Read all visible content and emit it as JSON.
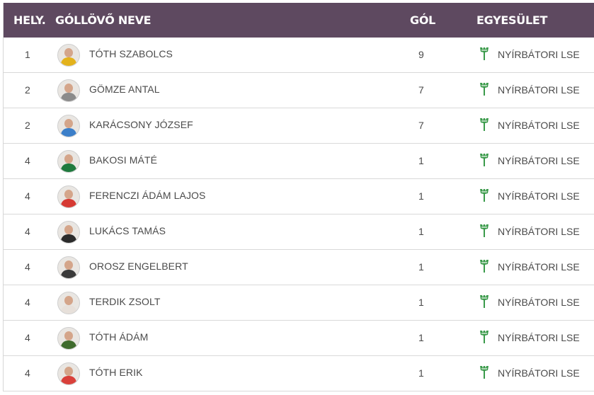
{
  "header": {
    "rank": "HELY.",
    "name": "GÓLLÖVŐ NEVE",
    "goals": "GÓL",
    "club": "EGYESÜLET"
  },
  "colors": {
    "header_bg": "#5e4960",
    "club_icon": "#3a9a4a"
  },
  "club_icon": "club-crest-icon",
  "rows": [
    {
      "rank": "1",
      "name": "TÓTH SZABOLCS",
      "goals": "9",
      "club": "NYÍRBÁTORI LSE",
      "shirt": "#e3b21c"
    },
    {
      "rank": "2",
      "name": "GÖMZE ANTAL",
      "goals": "7",
      "club": "NYÍRBÁTORI LSE",
      "shirt": "#8b8b8b"
    },
    {
      "rank": "2",
      "name": "KARÁCSONY JÓZSEF",
      "goals": "7",
      "club": "NYÍRBÁTORI LSE",
      "shirt": "#3c7fc9"
    },
    {
      "rank": "4",
      "name": "BAKOSI MÁTÉ",
      "goals": "1",
      "club": "NYÍRBÁTORI LSE",
      "shirt": "#1f7a3e"
    },
    {
      "rank": "4",
      "name": "FERENCZI ÁDÁM LAJOS",
      "goals": "1",
      "club": "NYÍRBÁTORI LSE",
      "shirt": "#d63a33"
    },
    {
      "rank": "4",
      "name": "LUKÁCS TAMÁS",
      "goals": "1",
      "club": "NYÍRBÁTORI LSE",
      "shirt": "#2b2b2b"
    },
    {
      "rank": "4",
      "name": "OROSZ ENGELBERT",
      "goals": "1",
      "club": "NYÍRBÁTORI LSE",
      "shirt": "#3a3a3a"
    },
    {
      "rank": "4",
      "name": "TERDIK ZSOLT",
      "goals": "1",
      "club": "NYÍRBÁTORI LSE",
      "shirt": "#e7e0da"
    },
    {
      "rank": "4",
      "name": "TÓTH ÁDÁM",
      "goals": "1",
      "club": "NYÍRBÁTORI LSE",
      "shirt": "#3f6b2d"
    },
    {
      "rank": "4",
      "name": "TÓTH ERIK",
      "goals": "1",
      "club": "NYÍRBÁTORI LSE",
      "shirt": "#d9403a"
    }
  ]
}
